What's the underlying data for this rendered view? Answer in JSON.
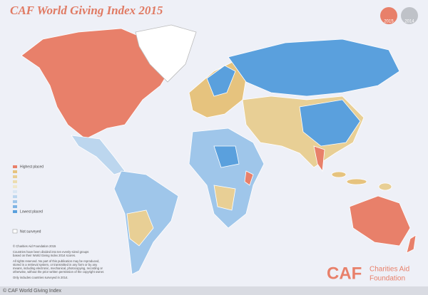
{
  "header": {
    "title": "CAF World Giving Index 2015",
    "buttons": [
      "2015",
      "2014"
    ]
  },
  "legend": {
    "highest": "Highest placed",
    "lowest": "Lowest placed",
    "not_surveyed": "Not surveyed"
  },
  "notes": {
    "copyright": "© Charities Aid Foundation 2015",
    "method": [
      "Countries have been divided into ten evenly-sized groups",
      "based on their World Giving Index 2014 scores."
    ],
    "rights": [
      "All rights reserved. No part of this publication may be reproduced,",
      "stored in a retrieval system, or transmitted in any form or by any",
      "means, including electronic, mechanical, photocopying, recording or",
      "otherwise, without the prior written permission of the copyright owner."
    ],
    "only": "Only includes countries surveyed in 2014."
  },
  "logo": {
    "mark": "CAF",
    "name": [
      "Charities Aid",
      "Foundation"
    ]
  },
  "footer": {
    "credit": "© CAF World Giving Index"
  }
}
